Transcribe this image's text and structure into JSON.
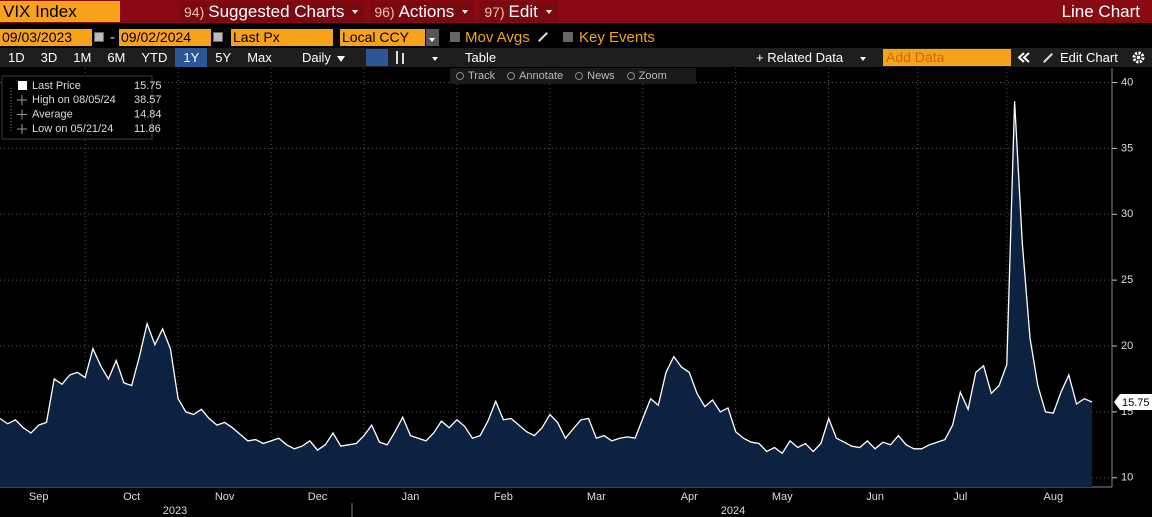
{
  "ui": {
    "security": "VIX Index",
    "menu": [
      {
        "num": "94)",
        "label": "Suggested Charts"
      },
      {
        "num": "96)",
        "label": "Actions"
      },
      {
        "num": "97)",
        "label": "Edit"
      }
    ],
    "view": "Line Chart",
    "start_date": "09/03/2023",
    "date_separator": "-",
    "end_date": "09/02/2024",
    "field": "Last Px",
    "currency": "Local CCY",
    "mov_avgs": "Mov Avgs",
    "key_events": "Key Events",
    "ranges": [
      "1D",
      "3D",
      "1M",
      "6M",
      "YTD",
      "1Y",
      "5Y",
      "Max"
    ],
    "active_range": "1Y",
    "period": "Daily",
    "table": "Table",
    "related": "+ Related Data",
    "add_data": "Add Data",
    "edit_chart": "Edit Chart",
    "tools": [
      "Track",
      "Annotate",
      "News",
      "Zoom"
    ]
  },
  "chart_data": {
    "type": "line",
    "categories": [
      null,
      null,
      null,
      null,
      null,
      "Sep",
      null,
      null,
      null,
      null,
      null,
      null,
      null,
      null,
      null,
      null,
      null,
      "Oct",
      null,
      null,
      null,
      null,
      null,
      null,
      null,
      null,
      null,
      null,
      null,
      "Nov",
      null,
      null,
      null,
      null,
      null,
      null,
      null,
      null,
      null,
      null,
      null,
      "Dec",
      null,
      null,
      null,
      null,
      null,
      null,
      null,
      null,
      null,
      null,
      null,
      "Jan",
      null,
      null,
      null,
      null,
      null,
      null,
      null,
      null,
      null,
      null,
      null,
      "Feb",
      null,
      null,
      null,
      null,
      null,
      null,
      null,
      null,
      null,
      null,
      null,
      "Mar",
      null,
      null,
      null,
      null,
      null,
      null,
      null,
      null,
      null,
      null,
      null,
      "Apr",
      null,
      null,
      null,
      null,
      null,
      null,
      null,
      null,
      null,
      null,
      null,
      "May",
      null,
      null,
      null,
      null,
      null,
      null,
      null,
      null,
      null,
      null,
      null,
      "Jun",
      null,
      null,
      null,
      null,
      null,
      null,
      null,
      null,
      null,
      null,
      "Jul",
      null,
      null,
      null,
      null,
      null,
      null,
      null,
      null,
      null,
      null,
      null,
      "Aug",
      null,
      null,
      null,
      null,
      null
    ],
    "series": [
      {
        "name": "Last Price",
        "color": "#ffffff",
        "area_color": "#0d2240",
        "values": [
          14.5,
          14.1,
          14.4,
          13.8,
          13.4,
          14.0,
          14.2,
          17.5,
          17.1,
          17.8,
          18.0,
          17.6,
          19.8,
          18.5,
          17.5,
          18.9,
          17.2,
          17.0,
          19.2,
          21.7,
          20.1,
          21.3,
          19.8,
          16.0,
          15.0,
          14.8,
          15.2,
          14.5,
          14.0,
          14.2,
          13.8,
          13.3,
          12.8,
          12.9,
          12.6,
          12.8,
          13.0,
          12.5,
          12.2,
          12.4,
          12.8,
          12.1,
          12.5,
          13.4,
          12.4,
          12.5,
          12.6,
          13.2,
          14.0,
          12.7,
          12.5,
          13.5,
          14.6,
          13.2,
          13.0,
          12.8,
          13.4,
          14.3,
          13.8,
          14.4,
          13.9,
          13.0,
          13.2,
          14.3,
          15.8,
          14.4,
          14.5,
          14.0,
          13.5,
          13.2,
          13.8,
          14.8,
          14.2,
          13.0,
          13.7,
          14.4,
          14.5,
          13.0,
          13.2,
          12.8,
          13.0,
          13.1,
          13.0,
          14.5,
          16.0,
          15.5,
          18.0,
          19.2,
          18.4,
          18.0,
          16.4,
          15.4,
          15.9,
          15.0,
          15.3,
          13.5,
          13.0,
          12.7,
          12.6,
          12.0,
          12.3,
          11.86,
          12.8,
          12.3,
          12.6,
          12.0,
          12.6,
          14.5,
          13.0,
          12.7,
          12.4,
          12.3,
          12.8,
          12.2,
          12.7,
          12.5,
          13.2,
          12.5,
          12.2,
          12.2,
          12.5,
          12.7,
          12.9,
          14.0,
          16.5,
          15.2,
          18.0,
          18.5,
          16.4,
          17.0,
          18.6,
          38.57,
          27.8,
          20.6,
          17.0,
          15.0,
          14.9,
          16.5,
          17.8,
          15.6,
          16.0,
          15.75
        ]
      }
    ],
    "last": 15.75,
    "stats": [
      {
        "label": "High on 08/05/24",
        "value": 38.57
      },
      {
        "label": "Average",
        "value": 14.84
      },
      {
        "label": "Low on 05/21/24",
        "value": 11.86
      }
    ],
    "years": [
      "2023",
      "2024"
    ],
    "ylim": [
      9.3,
      41.1
    ],
    "yticks": [
      10,
      15,
      20,
      25,
      30,
      35,
      40
    ],
    "grid": true
  }
}
